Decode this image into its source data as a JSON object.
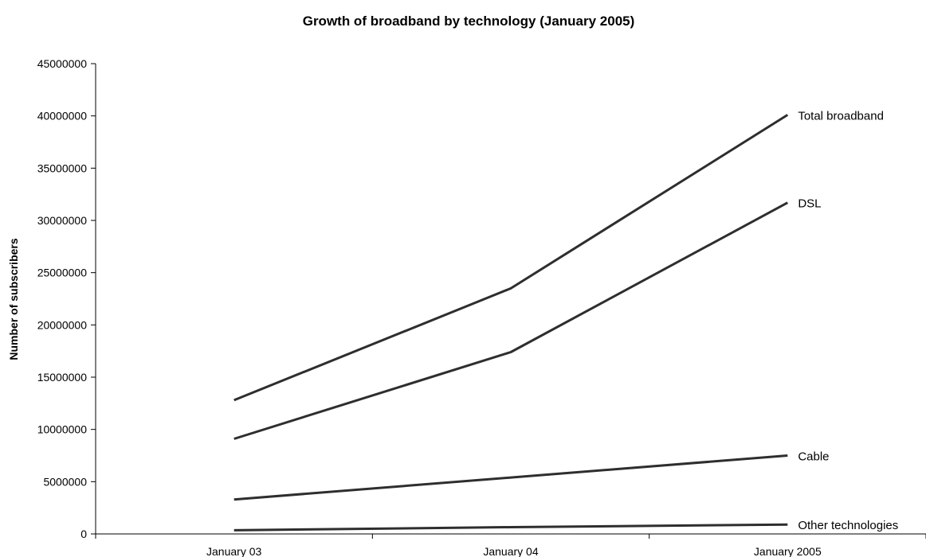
{
  "chart_data": {
    "type": "line",
    "title": "Growth of broadband by technology (January 2005)",
    "xlabel": "",
    "ylabel": "Number of subscribers",
    "categories": [
      "January 03",
      "January 04",
      "January 2005"
    ],
    "ylim": [
      0,
      45000000
    ],
    "yticks": [
      "0",
      "5000000",
      "10000000",
      "15000000",
      "20000000",
      "25000000",
      "30000000",
      "35000000",
      "40000000",
      "45000000"
    ],
    "grid": false,
    "legend": "none",
    "series": [
      {
        "name": "Total broadband",
        "values": [
          12800000,
          23500000,
          40100000
        ]
      },
      {
        "name": "DSL",
        "values": [
          9100000,
          17400000,
          31700000
        ]
      },
      {
        "name": "Cable",
        "values": [
          3300000,
          5400000,
          7500000
        ]
      },
      {
        "name": "Other technologies",
        "values": [
          350000,
          650000,
          900000
        ]
      }
    ],
    "line_color": "#2e2e2e"
  }
}
